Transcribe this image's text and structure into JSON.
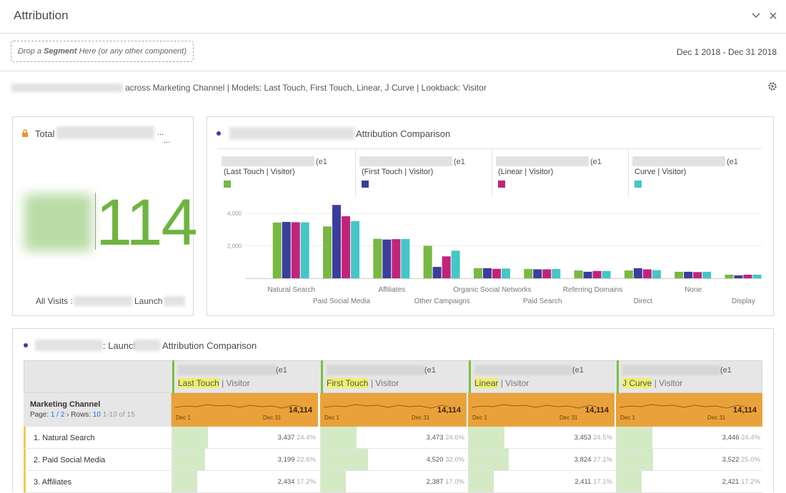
{
  "header": {
    "title": "Attribution"
  },
  "toolbar": {
    "drop_zone": {
      "before": "Drop a",
      "bold": "Segment",
      "after": "Here (or any other component)"
    },
    "date_range": "Dec 1 2018 - Dec 31 2018"
  },
  "description": "across Marketing Channel | Models: Last Touch, First Touch, Linear, J Curve | Lookback: Visitor",
  "summary_panel": {
    "label": "Total",
    "ellipsis": "...",
    "value": "114",
    "footer_prefix": "All Visits :",
    "footer_mid": "Launch"
  },
  "chart_data": {
    "type": "bar",
    "title": "Attribution Comparison",
    "legend_tags": [
      "(e1",
      "(e1",
      "(e1",
      "(e1"
    ],
    "categories": [
      "Natural Search",
      "Paid Social Media",
      "Affiliates",
      "Other Campaigns",
      "Organic Social Networks",
      "Paid Search",
      "Referring Domains",
      "Direct",
      "None",
      "Display"
    ],
    "series": [
      {
        "name": "(Last Touch | Visitor)",
        "color": "#78b843",
        "values": [
          3437,
          3199,
          2434,
          2000,
          620,
          570,
          480,
          480,
          400,
          220
        ]
      },
      {
        "name": "(First Touch | Visitor)",
        "color": "#3b3e9c",
        "values": [
          3473,
          4520,
          2387,
          700,
          620,
          550,
          400,
          620,
          400,
          180
        ]
      },
      {
        "name": "(Linear | Visitor)",
        "color": "#c1247b",
        "values": [
          3453,
          3824,
          2411,
          1350,
          580,
          550,
          450,
          550,
          380,
          220
        ]
      },
      {
        "name": "Curve | Visitor)",
        "color": "#44c7c6",
        "values": [
          3446,
          3522,
          2421,
          1700,
          600,
          570,
          450,
          500,
          400,
          220
        ]
      }
    ],
    "ylim": [
      0,
      4400
    ],
    "yticks": [
      {
        "value": 2000,
        "label": "2,000"
      },
      {
        "value": 4000,
        "label": "4,000"
      }
    ],
    "grid": true
  },
  "table": {
    "title_mid": ": Launch",
    "title": "Attribution Comparison",
    "header": {
      "dimension": "Marketing Channel",
      "page_label": "Page:",
      "page": "1 / 2",
      "rows_label": "Rows:",
      "rows": "10",
      "range": "1-10 of 15"
    },
    "columns": [
      {
        "tag": "(e1",
        "model": "Last Touch",
        "lookback": "| Visitor",
        "start": "Dec 1",
        "end": "Dec 31",
        "total": "14,114"
      },
      {
        "tag": "(e1",
        "model": "First Touch",
        "lookback": "| Visitor",
        "start": "Dec 1",
        "end": "Dec 31",
        "total": "14,114"
      },
      {
        "tag": "(e1",
        "model": "Linear",
        "lookback": "| Visitor",
        "start": "Dec 1",
        "end": "Dec 31",
        "total": "14,114"
      },
      {
        "tag": "(e1",
        "model": "J Curve",
        "lookback": "| Visitor",
        "start": "Dec 1",
        "end": "Dec 31",
        "total": "14,114"
      }
    ],
    "rows": [
      {
        "label": "1. Natural Search",
        "cells": [
          {
            "value": "3,437",
            "share": "24.4%"
          },
          {
            "value": "3,473",
            "share": "24.6%"
          },
          {
            "value": "3,453",
            "share": "24.5%"
          },
          {
            "value": "3,446",
            "share": "24.4%"
          }
        ]
      },
      {
        "label": "2. Paid Social Media",
        "cells": [
          {
            "value": "3,199",
            "share": "22.6%"
          },
          {
            "value": "4,520",
            "share": "32.0%"
          },
          {
            "value": "3,824",
            "share": "27.1%"
          },
          {
            "value": "3,522",
            "share": "25.0%"
          }
        ]
      },
      {
        "label": "3. Affiliates",
        "cells": [
          {
            "value": "2,434",
            "share": "17.2%"
          },
          {
            "value": "2,387",
            "share": "17.0%"
          },
          {
            "value": "2,411",
            "share": "17.1%"
          },
          {
            "value": "2,421",
            "share": "17.2%"
          }
        ]
      }
    ]
  }
}
